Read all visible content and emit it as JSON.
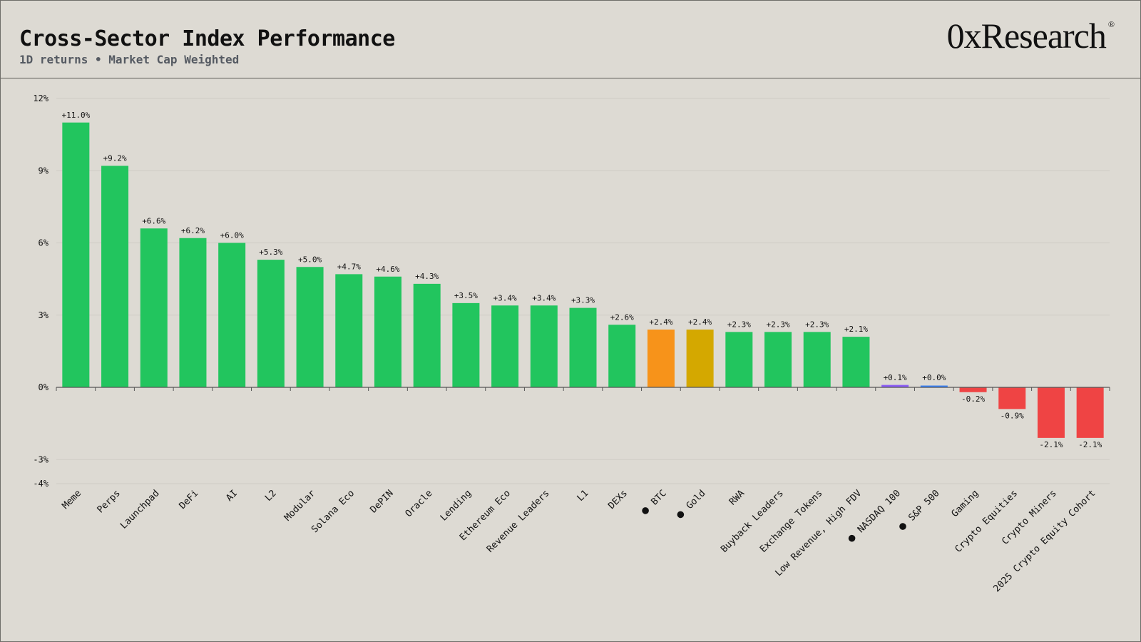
{
  "header": {
    "title": "Cross-Sector Index Performance",
    "subtitle": "1D returns • Market Cap Weighted",
    "logo_text": "0xResearch",
    "logo_mark": "®"
  },
  "colors": {
    "background": "#dddad3",
    "positive": "#22c55e",
    "negative": "#ef4444",
    "btc": "#f7931a",
    "gold": "#d4a800",
    "nasdaq": "#8b5cf6",
    "sp500": "#3b82f6",
    "grid": "#cfccc5",
    "axis": "#555555",
    "text": "#111111"
  },
  "chart_data": {
    "type": "bar",
    "title": "Cross-Sector Index Performance",
    "subtitle": "1D returns • Market Cap Weighted",
    "xlabel": "",
    "ylabel": "",
    "ylim": [
      -4,
      12
    ],
    "yticks": [
      12,
      9,
      6,
      3,
      0,
      -3,
      -4
    ],
    "ytick_labels": [
      "12%",
      "9%",
      "6%",
      "3%",
      "0%",
      "-3%",
      "-4%"
    ],
    "grid": true,
    "legend": "none",
    "categories": [
      "Meme",
      "Perps",
      "Launchpad",
      "DeFi",
      "AI",
      "L2",
      "Modular",
      "Solana Eco",
      "DePIN",
      "Oracle",
      "Lending",
      "Ethereum Eco",
      "Revenue Leaders",
      "L1",
      "DEXs",
      "BTC",
      "Gold",
      "RWA",
      "Buyback Leaders",
      "Exchange Tokens",
      "Low Revenue, High FDV",
      "NASDAQ 100",
      "S&P 500",
      "Gaming",
      "Crypto Equities",
      "Crypto Miners",
      "2025 Crypto Equity Cohort"
    ],
    "values": [
      11.0,
      9.2,
      6.6,
      6.2,
      6.0,
      5.3,
      5.0,
      4.7,
      4.6,
      4.3,
      3.5,
      3.4,
      3.4,
      3.3,
      2.6,
      2.4,
      2.4,
      2.3,
      2.3,
      2.3,
      2.1,
      0.1,
      0.0,
      -0.2,
      -0.9,
      -2.1,
      -2.1
    ],
    "value_labels": [
      "+11.0%",
      "+9.2%",
      "+6.6%",
      "+6.2%",
      "+6.0%",
      "+5.3%",
      "+5.0%",
      "+4.7%",
      "+4.6%",
      "+4.3%",
      "+3.5%",
      "+3.4%",
      "+3.4%",
      "+3.3%",
      "+2.6%",
      "+2.4%",
      "+2.4%",
      "+2.3%",
      "+2.3%",
      "+2.3%",
      "+2.1%",
      "+0.1%",
      "+0.0%",
      "-0.2%",
      "-0.9%",
      "-2.1%",
      "-2.1%"
    ],
    "benchmark_marker": "●",
    "benchmarks": [
      "BTC",
      "Gold",
      "NASDAQ 100",
      "S&P 500"
    ],
    "bar_colors": [
      "positive",
      "positive",
      "positive",
      "positive",
      "positive",
      "positive",
      "positive",
      "positive",
      "positive",
      "positive",
      "positive",
      "positive",
      "positive",
      "positive",
      "positive",
      "btc",
      "gold",
      "positive",
      "positive",
      "positive",
      "positive",
      "nasdaq",
      "sp500",
      "negative",
      "negative",
      "negative",
      "negative"
    ]
  }
}
